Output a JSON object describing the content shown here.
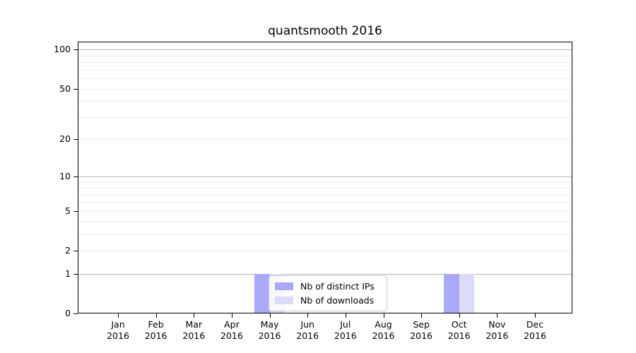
{
  "title": "quantsmooth 2016",
  "colors": {
    "background": "#ffffff",
    "axis": "#000000",
    "text": "#000000",
    "grid_major": "#b5b5b5",
    "grid_minor": "#ececec",
    "legend_border": "#cccccc"
  },
  "legend": {
    "entries": [
      {
        "label": "Nb of distinct IPs",
        "color": "#a9a9f6"
      },
      {
        "label": "Nb of downloads",
        "color": "#dcdcf9"
      }
    ]
  },
  "chart_data": {
    "type": "bar",
    "title": "quantsmooth 2016",
    "categories": [
      "Jan",
      "Feb",
      "Mar",
      "Apr",
      "May",
      "Jun",
      "Jul",
      "Aug",
      "Sep",
      "Oct",
      "Nov",
      "Dec"
    ],
    "x_tick_second_line": "2016",
    "series": [
      {
        "name": "Nb of distinct IPs",
        "color": "#a9a9f6",
        "values": [
          0,
          0,
          0,
          0,
          1,
          0,
          0,
          0,
          0,
          1,
          0,
          0
        ]
      },
      {
        "name": "Nb of downloads",
        "color": "#dcdcf9",
        "values": [
          0,
          0,
          0,
          0,
          1,
          0,
          0,
          0,
          0,
          1,
          0,
          0
        ]
      }
    ],
    "xlabel": "",
    "ylabel": "",
    "y_axis": {
      "scale": "log1p",
      "tick_values": [
        0,
        1,
        2,
        5,
        10,
        20,
        50,
        100
      ],
      "major_gridlines": [
        1,
        10,
        100
      ],
      "minor_gridlines": [
        2,
        3,
        4,
        5,
        6,
        7,
        8,
        9,
        20,
        30,
        40,
        50,
        60,
        70,
        80,
        90
      ],
      "top_value": 115
    },
    "grid": true,
    "legend_position": "lower center"
  }
}
